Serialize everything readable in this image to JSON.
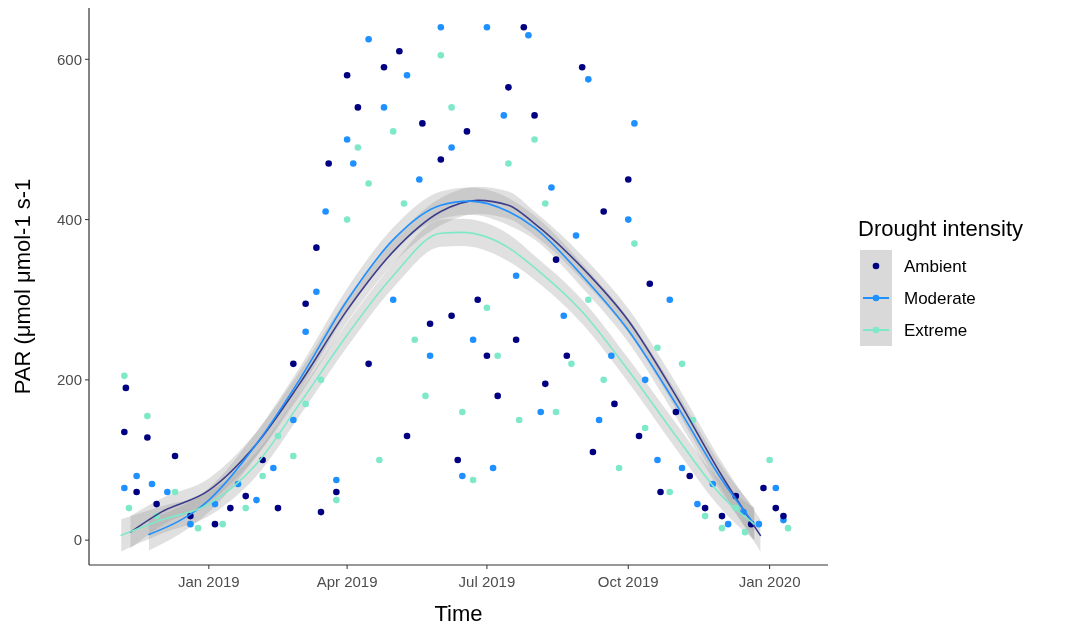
{
  "chart_data": {
    "type": "scatter",
    "xlabel": "Time",
    "ylabel": "PAR (μmol μmol-1 s-1",
    "legend_title": "Drought intensity",
    "legend": "right",
    "grid": false,
    "marker": "circle",
    "xlim": [
      "2018-10-15",
      "2020-02-08"
    ],
    "xticks": [
      {
        "value": "2019-01-01",
        "label": "Jan 2019"
      },
      {
        "value": "2019-04-01",
        "label": "Apr 2019"
      },
      {
        "value": "2019-07-01",
        "label": "Jul 2019"
      },
      {
        "value": "2019-10-01",
        "label": "Oct 2019"
      },
      {
        "value": "2020-01-01",
        "label": "Jan 2020"
      }
    ],
    "ylim": [
      -31,
      664
    ],
    "yticks": [
      0,
      200,
      400,
      600
    ],
    "series": [
      {
        "name": "Extreme",
        "color": "#7fe8c8",
        "x": [
          "2018-11-07",
          "2018-11-10",
          "2018-11-22",
          "2018-11-28",
          "2018-12-10",
          "2018-12-25",
          "2019-01-10",
          "2019-01-25",
          "2019-02-05",
          "2019-02-15",
          "2019-02-25",
          "2019-03-05",
          "2019-03-15",
          "2019-03-25",
          "2019-04-01",
          "2019-04-08",
          "2019-04-15",
          "2019-04-22",
          "2019-05-01",
          "2019-05-08",
          "2019-05-15",
          "2019-05-22",
          "2019-06-01",
          "2019-06-08",
          "2019-06-15",
          "2019-06-22",
          "2019-07-01",
          "2019-07-08",
          "2019-07-15",
          "2019-07-22",
          "2019-08-01",
          "2019-08-08",
          "2019-08-15",
          "2019-08-25",
          "2019-09-05",
          "2019-09-15",
          "2019-09-25",
          "2019-10-05",
          "2019-10-12",
          "2019-10-20",
          "2019-10-28",
          "2019-11-05",
          "2019-11-12",
          "2019-11-20",
          "2019-12-01",
          "2019-12-10",
          "2019-12-16",
          "2020-01-01",
          "2020-01-13"
        ],
        "values": [
          205,
          40,
          155,
          30,
          60,
          15,
          20,
          40,
          80,
          130,
          105,
          170,
          200,
          50,
          400,
          490,
          445,
          100,
          510,
          420,
          250,
          180,
          605,
          540,
          160,
          75,
          290,
          230,
          470,
          150,
          500,
          420,
          160,
          220,
          300,
          200,
          90,
          370,
          140,
          240,
          60,
          220,
          150,
          30,
          15,
          40,
          10,
          100,
          15
        ]
      },
      {
        "name": "Moderate",
        "color": "#1e90ff",
        "x": [
          "2018-11-07",
          "2018-11-15",
          "2018-11-25",
          "2018-12-05",
          "2018-12-20",
          "2019-01-05",
          "2019-01-20",
          "2019-02-01",
          "2019-02-12",
          "2019-02-25",
          "2019-03-05",
          "2019-03-12",
          "2019-03-18",
          "2019-03-25",
          "2019-04-01",
          "2019-04-05",
          "2019-04-15",
          "2019-04-25",
          "2019-05-01",
          "2019-05-10",
          "2019-05-18",
          "2019-05-25",
          "2019-06-01",
          "2019-06-08",
          "2019-06-15",
          "2019-06-22",
          "2019-07-01",
          "2019-07-05",
          "2019-07-12",
          "2019-07-20",
          "2019-07-28",
          "2019-08-05",
          "2019-08-12",
          "2019-08-20",
          "2019-08-28",
          "2019-09-05",
          "2019-09-12",
          "2019-09-20",
          "2019-10-01",
          "2019-10-05",
          "2019-10-12",
          "2019-10-20",
          "2019-10-28",
          "2019-11-05",
          "2019-11-15",
          "2019-11-25",
          "2019-12-05",
          "2019-12-15",
          "2019-12-25",
          "2020-01-05",
          "2020-01-10"
        ],
        "values": [
          65,
          80,
          70,
          60,
          20,
          45,
          70,
          50,
          90,
          150,
          260,
          310,
          410,
          75,
          500,
          470,
          625,
          540,
          300,
          580,
          450,
          230,
          640,
          490,
          80,
          250,
          640,
          90,
          530,
          330,
          630,
          160,
          440,
          280,
          380,
          575,
          150,
          230,
          400,
          520,
          200,
          100,
          300,
          90,
          45,
          70,
          20,
          35,
          20,
          65,
          25
        ]
      },
      {
        "name": "Ambient",
        "color": "#000080",
        "x": [
          "2018-11-07",
          "2018-11-08",
          "2018-11-15",
          "2018-11-22",
          "2018-11-28",
          "2018-12-10",
          "2018-12-20",
          "2019-01-05",
          "2019-01-15",
          "2019-01-25",
          "2019-02-05",
          "2019-02-15",
          "2019-02-25",
          "2019-03-05",
          "2019-03-12",
          "2019-03-15",
          "2019-03-20",
          "2019-03-25",
          "2019-04-01",
          "2019-04-08",
          "2019-04-15",
          "2019-04-25",
          "2019-05-05",
          "2019-05-10",
          "2019-05-20",
          "2019-05-25",
          "2019-06-01",
          "2019-06-08",
          "2019-06-12",
          "2019-06-18",
          "2019-06-25",
          "2019-07-01",
          "2019-07-08",
          "2019-07-15",
          "2019-07-20",
          "2019-07-25",
          "2019-08-01",
          "2019-08-08",
          "2019-08-15",
          "2019-08-22",
          "2019-09-01",
          "2019-09-08",
          "2019-09-15",
          "2019-09-22",
          "2019-10-01",
          "2019-10-08",
          "2019-10-15",
          "2019-10-22",
          "2019-11-01",
          "2019-11-10",
          "2019-11-20",
          "2019-12-01",
          "2019-12-10",
          "2019-12-20",
          "2019-12-28",
          "2020-01-05",
          "2020-01-10"
        ],
        "values": [
          135,
          190,
          60,
          128,
          45,
          105,
          30,
          20,
          40,
          55,
          100,
          40,
          220,
          295,
          365,
          35,
          470,
          60,
          580,
          540,
          220,
          590,
          610,
          130,
          520,
          270,
          475,
          280,
          100,
          510,
          300,
          230,
          180,
          565,
          250,
          640,
          530,
          195,
          350,
          230,
          590,
          110,
          410,
          170,
          450,
          130,
          320,
          60,
          160,
          80,
          40,
          30,
          55,
          20,
          65,
          40,
          30
        ]
      },
      {
        "type": "line",
        "marker": "none",
        "color": "#7fe8c8",
        "x": [
          "2018-11-05",
          "2018-12-01",
          "2019-01-01",
          "2019-02-01",
          "2019-03-01",
          "2019-04-01",
          "2019-05-01",
          "2019-06-01",
          "2019-06-15",
          "2019-07-15",
          "2019-08-01",
          "2019-09-01",
          "2019-10-01",
          "2019-11-01",
          "2019-12-01",
          "2019-12-22"
        ],
        "values": [
          6,
          25,
          45,
          95,
          170,
          256,
          330,
          383,
          384,
          365,
          340,
          285,
          212,
          130,
          55,
          20
        ],
        "lower": [
          -14,
          8,
          30,
          80,
          155,
          241,
          315,
          366,
          367,
          348,
          325,
          270,
          197,
          114,
          38,
          0
        ],
        "upper": [
          26,
          42,
          60,
          110,
          185,
          271,
          345,
          400,
          401,
          382,
          355,
          300,
          227,
          146,
          72,
          40
        ]
      },
      {
        "type": "line",
        "marker": "none",
        "color": "#1e90ff",
        "x": [
          "2018-11-23",
          "2019-01-01",
          "2019-02-01",
          "2019-03-01",
          "2019-04-01",
          "2019-05-01",
          "2019-06-01",
          "2019-06-20",
          "2019-07-15",
          "2019-08-01",
          "2019-09-01",
          "2019-10-01",
          "2019-11-01",
          "2019-12-01",
          "2019-12-22"
        ],
        "values": [
          7,
          50,
          120,
          200,
          299,
          375,
          418,
          423,
          410,
          390,
          330,
          262,
          170,
          75,
          20
        ],
        "lower": [
          -13,
          35,
          105,
          185,
          284,
          360,
          401,
          406,
          393,
          375,
          315,
          247,
          154,
          58,
          0
        ],
        "upper": [
          27,
          65,
          135,
          215,
          314,
          390,
          435,
          440,
          427,
          405,
          345,
          277,
          186,
          92,
          40
        ]
      },
      {
        "type": "line",
        "marker": "none",
        "color": "#3c3c8c",
        "x": [
          "2018-11-11",
          "2018-12-01",
          "2019-01-01",
          "2019-02-01",
          "2019-03-01",
          "2019-04-01",
          "2019-05-01",
          "2019-06-01",
          "2019-06-25",
          "2019-07-15",
          "2019-08-01",
          "2019-09-01",
          "2019-10-01",
          "2019-11-01",
          "2019-12-01",
          "2019-12-26"
        ],
        "values": [
          10,
          35,
          62,
          120,
          195,
          287,
          360,
          410,
          424,
          418,
          395,
          340,
          274,
          180,
          80,
          6
        ],
        "lower": [
          -10,
          18,
          47,
          105,
          180,
          272,
          345,
          393,
          407,
          401,
          380,
          325,
          259,
          164,
          63,
          -14
        ],
        "upper": [
          30,
          52,
          77,
          135,
          210,
          302,
          375,
          427,
          441,
          435,
          410,
          355,
          289,
          196,
          97,
          26
        ]
      }
    ]
  }
}
